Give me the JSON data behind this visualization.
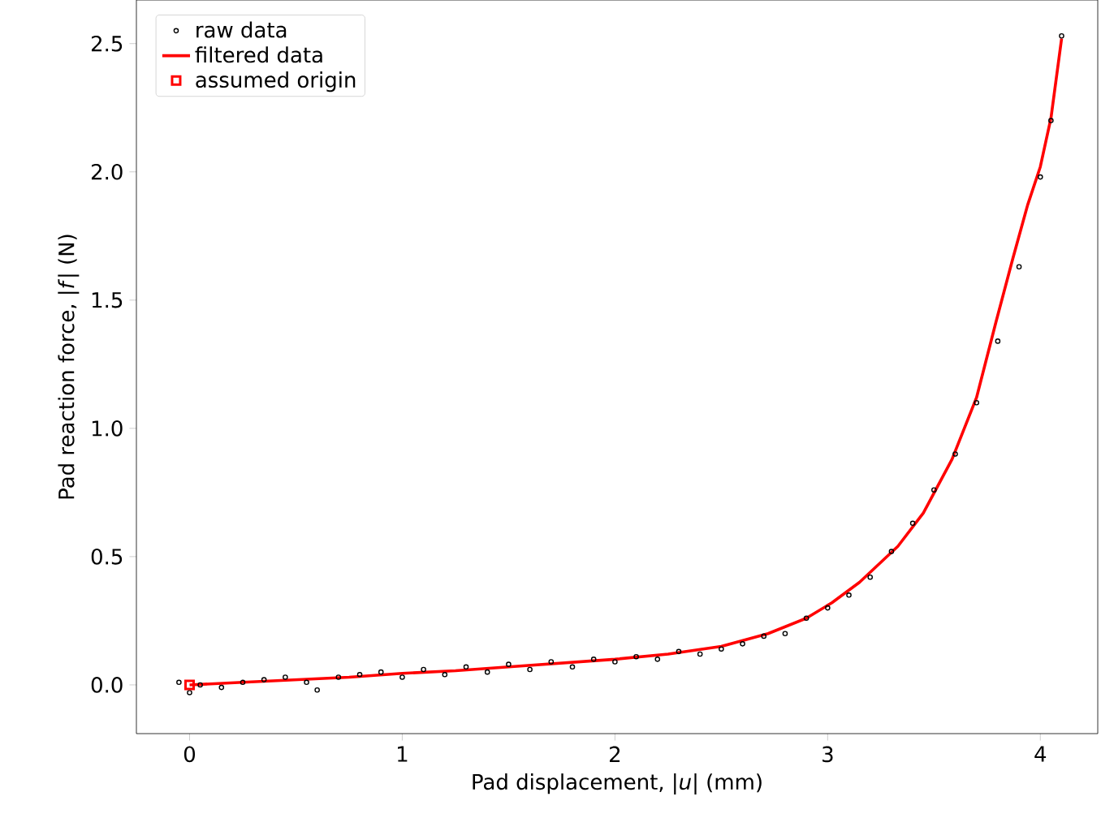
{
  "chart_data": {
    "type": "line",
    "xlabel": "Pad displacement, |*u*| (mm)",
    "ylabel": "Pad reaction force, |*f*| (N)",
    "xlim": [
      -0.25,
      4.27
    ],
    "ylim": [
      -0.19,
      2.67
    ],
    "xticks": [
      0,
      1,
      2,
      3,
      4
    ],
    "yticks": [
      {
        "value": 0,
        "label": "0.0"
      },
      0.5,
      {
        "value": 1,
        "label": "1.0"
      },
      1.5,
      {
        "value": 2,
        "label": "2.0"
      },
      2.5
    ],
    "grid": false,
    "legend": "top left",
    "series": [
      {
        "name": "raw data",
        "type": "scatter",
        "marker": "circle",
        "color": "#000000",
        "x": [
          -0.05,
          0.0,
          0.05,
          0.15,
          0.25,
          0.35,
          0.45,
          0.55,
          0.6,
          0.7,
          0.8,
          0.9,
          1.0,
          1.1,
          1.2,
          1.3,
          1.4,
          1.5,
          1.6,
          1.7,
          1.8,
          1.9,
          2.0,
          2.1,
          2.2,
          2.3,
          2.4,
          2.5,
          2.6,
          2.7,
          2.8,
          2.9,
          3.0,
          3.1,
          3.2,
          3.3,
          3.4,
          3.5,
          3.6,
          3.7,
          3.8,
          3.9,
          4.0,
          4.05,
          4.1
        ],
        "values": [
          0.01,
          -0.03,
          0.0,
          -0.01,
          0.01,
          0.02,
          0.03,
          0.01,
          -0.02,
          0.03,
          0.04,
          0.05,
          0.03,
          0.06,
          0.04,
          0.07,
          0.05,
          0.08,
          0.06,
          0.09,
          0.07,
          0.1,
          0.09,
          0.11,
          0.1,
          0.13,
          0.12,
          0.14,
          0.16,
          0.19,
          0.2,
          0.26,
          0.3,
          0.35,
          0.42,
          0.52,
          0.63,
          0.76,
          0.9,
          1.1,
          1.34,
          1.63,
          1.98,
          2.2,
          2.53
        ]
      },
      {
        "name": "filtered data",
        "marker": "none",
        "line_style": "solid",
        "color": "#ff0000",
        "x": [
          0.0,
          0.25,
          0.5,
          0.75,
          1.0,
          1.25,
          1.5,
          1.75,
          2.0,
          2.25,
          2.5,
          2.72,
          2.9,
          3.02,
          3.15,
          3.33,
          3.45,
          3.585,
          3.7,
          3.79,
          3.87,
          3.94,
          4.0,
          4.05,
          4.1
        ],
        "values": [
          0.0,
          0.01,
          0.02,
          0.03,
          0.045,
          0.055,
          0.07,
          0.085,
          0.1,
          0.12,
          0.15,
          0.2,
          0.26,
          0.32,
          0.4,
          0.54,
          0.67,
          0.88,
          1.12,
          1.41,
          1.66,
          1.87,
          2.02,
          2.21,
          2.52
        ]
      },
      {
        "name": "assumed origin",
        "type": "scatter",
        "marker": "square",
        "color": "#ff0000",
        "x": [
          0
        ],
        "values": [
          0
        ]
      }
    ]
  }
}
